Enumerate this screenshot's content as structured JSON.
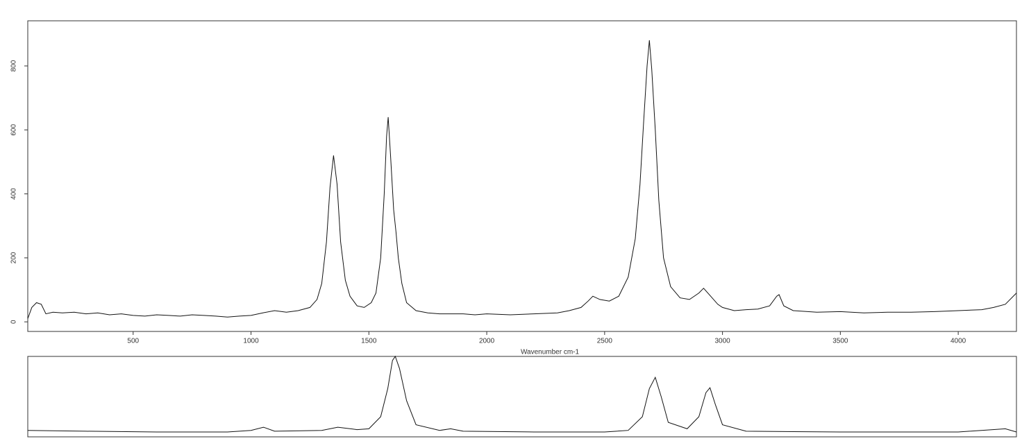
{
  "chart_data": [
    {
      "type": "line",
      "x_label": "Wavenumber cm-1",
      "x": [
        53,
        70,
        90,
        110,
        130,
        160,
        200,
        250,
        300,
        350,
        400,
        450,
        500,
        550,
        600,
        650,
        700,
        750,
        800,
        850,
        900,
        950,
        1000,
        1050,
        1100,
        1150,
        1200,
        1250,
        1280,
        1300,
        1320,
        1335,
        1350,
        1365,
        1380,
        1400,
        1420,
        1450,
        1480,
        1510,
        1530,
        1550,
        1565,
        1575,
        1582,
        1592,
        1605,
        1615,
        1625,
        1640,
        1660,
        1700,
        1750,
        1800,
        1850,
        1900,
        1950,
        2000,
        2100,
        2200,
        2300,
        2350,
        2400,
        2430,
        2450,
        2480,
        2520,
        2560,
        2600,
        2630,
        2650,
        2665,
        2680,
        2690,
        2700,
        2715,
        2730,
        2750,
        2780,
        2820,
        2860,
        2900,
        2920,
        2950,
        2980,
        3000,
        3050,
        3100,
        3150,
        3200,
        3230,
        3240,
        3260,
        3300,
        3400,
        3500,
        3600,
        3700,
        3800,
        3900,
        4000,
        4100,
        4150,
        4200,
        4247
      ],
      "series": [
        {
          "color": "#111111",
          "values": [
            10,
            45,
            60,
            55,
            25,
            30,
            28,
            30,
            25,
            28,
            22,
            25,
            20,
            18,
            22,
            20,
            18,
            22,
            20,
            18,
            15,
            18,
            20,
            28,
            35,
            30,
            35,
            45,
            70,
            120,
            250,
            420,
            520,
            430,
            250,
            130,
            80,
            50,
            45,
            60,
            90,
            200,
            400,
            580,
            640,
            520,
            350,
            280,
            200,
            120,
            60,
            35,
            28,
            25,
            25,
            25,
            22,
            25,
            22,
            25,
            28,
            35,
            45,
            65,
            80,
            70,
            65,
            80,
            140,
            260,
            430,
            620,
            800,
            880,
            790,
            600,
            380,
            200,
            110,
            75,
            70,
            90,
            105,
            80,
            55,
            45,
            35,
            38,
            40,
            50,
            80,
            85,
            50,
            35,
            30,
            32,
            28,
            30,
            30,
            32,
            35,
            38,
            45,
            55,
            90
          ]
        }
      ],
      "xlim": [
        53,
        4247
      ],
      "ylim": [
        -30,
        941
      ],
      "xticks": [
        500,
        1000,
        1500,
        2000,
        2500,
        3000,
        3500,
        4000
      ],
      "yticks": [
        0,
        200,
        400,
        600,
        800
      ]
    },
    {
      "type": "line",
      "x": [
        53,
        300,
        600,
        900,
        1000,
        1053,
        1100,
        1300,
        1368,
        1450,
        1500,
        1550,
        1580,
        1600,
        1612,
        1630,
        1660,
        1700,
        1800,
        1847,
        1900,
        2200,
        2500,
        2600,
        2660,
        2690,
        2715,
        2740,
        2770,
        2850,
        2900,
        2930,
        2947,
        2970,
        3000,
        3100,
        3500,
        4000,
        4200,
        4247
      ],
      "series": [
        {
          "color": "#111111",
          "values": [
            8,
            7,
            6,
            6,
            8,
            12,
            7,
            8,
            12,
            9,
            10,
            25,
            60,
            95,
            100,
            85,
            45,
            15,
            8,
            10,
            7,
            6,
            6,
            8,
            25,
            60,
            74,
            50,
            18,
            10,
            25,
            55,
            61,
            40,
            15,
            7,
            6,
            6,
            10,
            6
          ]
        }
      ],
      "xlim": [
        53,
        4247
      ],
      "ylim": [
        0,
        100
      ]
    }
  ]
}
